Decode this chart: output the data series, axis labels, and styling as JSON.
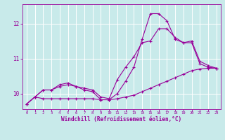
{
  "background_color": "#c8eaea",
  "grid_color": "#b8d8d8",
  "line_color": "#990099",
  "xlabel": "Windchill (Refroidissement éolien,°C)",
  "xlim": [
    -0.5,
    23.5
  ],
  "ylim": [
    9.55,
    12.55
  ],
  "yticks": [
    10,
    11,
    12
  ],
  "xticks": [
    0,
    1,
    2,
    3,
    4,
    5,
    6,
    7,
    8,
    9,
    10,
    11,
    12,
    13,
    14,
    15,
    16,
    17,
    18,
    19,
    20,
    21,
    22,
    23
  ],
  "line1_x": [
    0,
    1,
    2,
    3,
    4,
    5,
    6,
    7,
    8,
    9,
    10,
    11,
    12,
    13,
    14,
    15,
    16,
    17,
    18,
    19,
    20,
    21,
    22,
    23
  ],
  "line1_y": [
    9.7,
    9.9,
    9.85,
    9.85,
    9.85,
    9.85,
    9.85,
    9.85,
    9.85,
    9.82,
    9.82,
    9.85,
    9.9,
    9.95,
    10.05,
    10.15,
    10.25,
    10.35,
    10.45,
    10.55,
    10.65,
    10.7,
    10.72,
    10.72
  ],
  "line2_x": [
    0,
    1,
    2,
    3,
    4,
    5,
    6,
    7,
    8,
    9,
    10,
    11,
    12,
    13,
    14,
    15,
    16,
    17,
    18,
    19,
    20,
    21,
    22,
    23
  ],
  "line2_y": [
    9.7,
    9.9,
    10.1,
    10.1,
    10.2,
    10.25,
    10.2,
    10.15,
    10.1,
    9.9,
    9.85,
    10.4,
    10.75,
    11.05,
    11.45,
    11.5,
    11.85,
    11.85,
    11.6,
    11.45,
    11.45,
    10.85,
    10.75,
    10.72
  ],
  "line3_x": [
    0,
    1,
    2,
    3,
    4,
    5,
    6,
    7,
    8,
    9,
    10,
    11,
    12,
    13,
    14,
    15,
    16,
    17,
    18,
    19,
    20,
    21,
    22,
    23
  ],
  "line3_y": [
    9.7,
    9.9,
    10.1,
    10.1,
    10.25,
    10.3,
    10.2,
    10.1,
    10.05,
    9.82,
    9.82,
    10.0,
    10.35,
    10.75,
    11.55,
    12.28,
    12.28,
    12.08,
    11.55,
    11.45,
    11.5,
    10.92,
    10.8,
    10.72
  ]
}
